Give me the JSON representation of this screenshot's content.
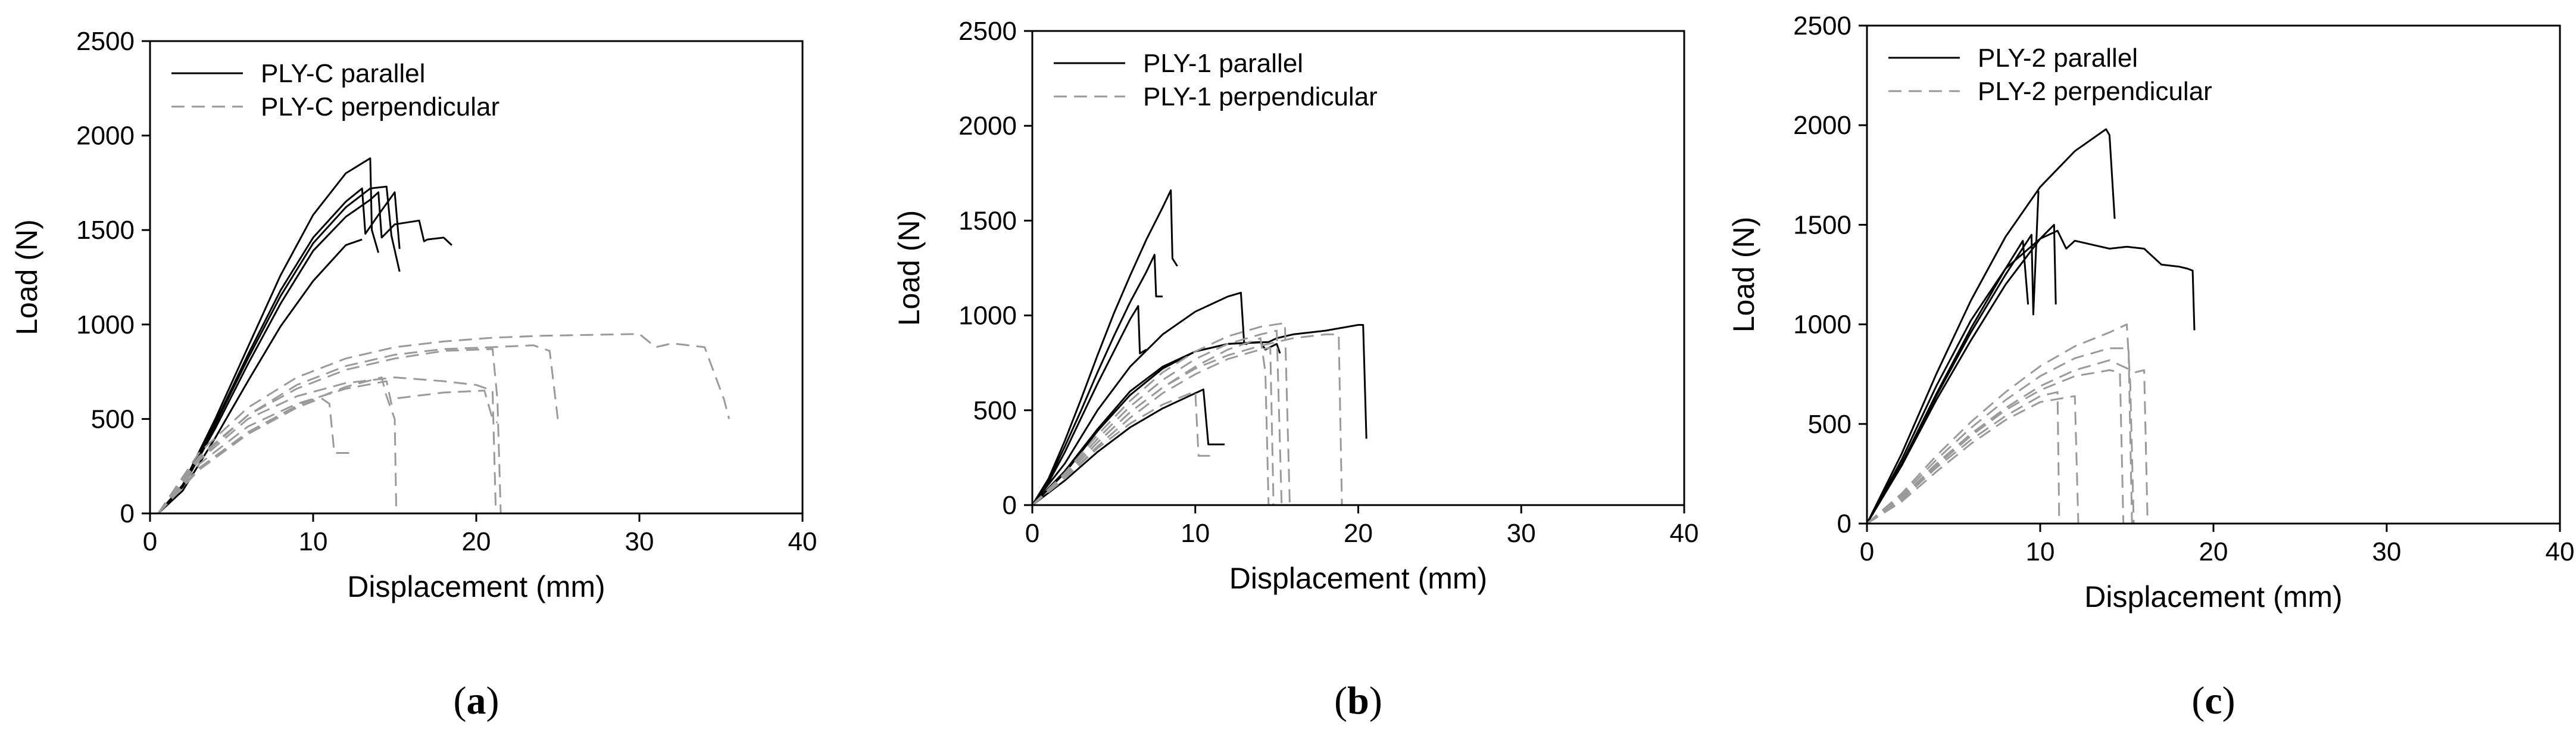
{
  "chart_data": [
    {
      "type": "line",
      "panel_label": "(a)",
      "panel_label_parts": [
        "(",
        "a",
        ")"
      ],
      "xlabel": "Displacement (mm)",
      "ylabel": "Load (N)",
      "xlim": [
        0,
        40
      ],
      "ylim": [
        0,
        2500
      ],
      "xticks": [
        0,
        10,
        20,
        30,
        40
      ],
      "yticks": [
        0,
        500,
        1000,
        1500,
        2000,
        2500
      ],
      "grid": false,
      "legend_position": "top-left",
      "legend": [
        {
          "label": "PLY-C parallel",
          "style": "solid",
          "color": "#000000"
        },
        {
          "label": "PLY-C perpendicular",
          "style": "dashed",
          "color": "#9a9a9a"
        }
      ],
      "series": [
        {
          "group": 0,
          "x": [
            0.5,
            2,
            4,
            6,
            8,
            10,
            12,
            13.5,
            13.6,
            14
          ],
          "y": [
            0,
            150,
            500,
            880,
            1260,
            1580,
            1800,
            1880,
            1500,
            1380
          ]
        },
        {
          "group": 0,
          "x": [
            0.5,
            2,
            4,
            6,
            8,
            10,
            12,
            13.5,
            14.5,
            14.8,
            15.3
          ],
          "y": [
            0,
            140,
            470,
            820,
            1150,
            1430,
            1620,
            1720,
            1730,
            1470,
            1280
          ]
        },
        {
          "group": 0,
          "x": [
            0.5,
            2,
            4,
            6,
            8,
            10,
            12,
            13.5,
            14,
            14.2,
            15,
            16.5,
            16.8,
            17,
            18,
            18.5
          ],
          "y": [
            0,
            140,
            450,
            790,
            1110,
            1390,
            1570,
            1660,
            1700,
            1460,
            1530,
            1550,
            1440,
            1450,
            1460,
            1420
          ]
        },
        {
          "group": 0,
          "x": [
            0.5,
            2,
            4,
            6,
            8,
            10,
            12,
            13,
            13.2,
            14,
            15,
            15.3
          ],
          "y": [
            0,
            150,
            480,
            840,
            1180,
            1460,
            1650,
            1720,
            1480,
            1580,
            1700,
            1400
          ]
        },
        {
          "group": 0,
          "x": [
            0.5,
            2,
            4,
            6,
            8,
            10,
            12,
            13
          ],
          "y": [
            0,
            120,
            400,
            700,
            990,
            1230,
            1420,
            1450
          ]
        },
        {
          "group": 1,
          "x": [
            0.5,
            3,
            6,
            9,
            12,
            15,
            18,
            21,
            21.3,
            21.5
          ],
          "y": [
            0,
            300,
            520,
            660,
            760,
            820,
            860,
            870,
            600,
            0
          ]
        },
        {
          "group": 1,
          "x": [
            0.5,
            3,
            6,
            9,
            12,
            15,
            18,
            20,
            21,
            21.2
          ],
          "y": [
            0,
            280,
            500,
            620,
            690,
            720,
            700,
            680,
            650,
            0
          ]
        },
        {
          "group": 1,
          "x": [
            0.5,
            3,
            6,
            9,
            12,
            14.5,
            14.8,
            15.2,
            18,
            20.5,
            21,
            21.3
          ],
          "y": [
            0,
            260,
            460,
            580,
            660,
            700,
            580,
            610,
            640,
            650,
            500,
            480
          ]
        },
        {
          "group": 1,
          "x": [
            0.5,
            3,
            6,
            9,
            12,
            15,
            18,
            21,
            24,
            27,
            30,
            31,
            32,
            34,
            35.2,
            35.5
          ],
          "y": [
            0,
            320,
            560,
            720,
            820,
            880,
            910,
            930,
            940,
            945,
            950,
            880,
            900,
            880,
            600,
            500
          ]
        },
        {
          "group": 1,
          "x": [
            0.5,
            3,
            6,
            9,
            12,
            15,
            18,
            21,
            23.5,
            24.5,
            25
          ],
          "y": [
            0,
            290,
            520,
            680,
            780,
            840,
            870,
            880,
            890,
            860,
            500
          ]
        },
        {
          "group": 1,
          "x": [
            0.5,
            3,
            6,
            9,
            10.5,
            11,
            11.3,
            12.5
          ],
          "y": [
            0,
            230,
            420,
            560,
            610,
            580,
            320,
            320
          ]
        },
        {
          "group": 1,
          "x": [
            0.5,
            3,
            6,
            9,
            12,
            14.2,
            14.5,
            15,
            15.1
          ],
          "y": [
            0,
            240,
            430,
            570,
            670,
            720,
            620,
            500,
            0
          ]
        }
      ]
    },
    {
      "type": "line",
      "panel_label": "(b)",
      "panel_label_parts": [
        "(",
        "b",
        ")"
      ],
      "xlabel": "Displacement (mm)",
      "ylabel": "Load (N)",
      "xlim": [
        0,
        40
      ],
      "ylim": [
        0,
        2500
      ],
      "xticks": [
        0,
        10,
        20,
        30,
        40
      ],
      "yticks": [
        0,
        500,
        1000,
        1500,
        2000,
        2500
      ],
      "grid": false,
      "legend_position": "top-left",
      "legend": [
        {
          "label": "PLY-1 parallel",
          "style": "solid",
          "color": "#000000"
        },
        {
          "label": "PLY-1 perpendicular",
          "style": "dashed",
          "color": "#9a9a9a"
        }
      ],
      "series": [
        {
          "group": 0,
          "x": [
            0,
            1,
            2,
            3,
            4,
            5,
            6,
            7,
            8,
            8.5,
            8.6,
            8.9
          ],
          "y": [
            0,
            140,
            340,
            560,
            790,
            1010,
            1210,
            1400,
            1570,
            1660,
            1300,
            1260
          ]
        },
        {
          "group": 0,
          "x": [
            0,
            1,
            2,
            3,
            4,
            5,
            6,
            7,
            7.5,
            7.6,
            8
          ],
          "y": [
            0,
            130,
            310,
            500,
            700,
            890,
            1070,
            1230,
            1320,
            1100,
            1100
          ]
        },
        {
          "group": 0,
          "x": [
            0,
            1,
            2,
            3,
            4,
            5,
            6,
            6.5,
            6.6,
            7
          ],
          "y": [
            0,
            120,
            280,
            460,
            640,
            810,
            980,
            1050,
            800,
            820
          ]
        },
        {
          "group": 0,
          "x": [
            0,
            2,
            4,
            6,
            8,
            10,
            12,
            12.8,
            13,
            13.2
          ],
          "y": [
            0,
            220,
            500,
            730,
            900,
            1020,
            1100,
            1120,
            850,
            850
          ]
        },
        {
          "group": 0,
          "x": [
            0,
            2,
            4,
            6,
            8,
            10,
            12,
            14,
            14.3,
            15,
            15.2
          ],
          "y": [
            0,
            170,
            390,
            580,
            720,
            810,
            850,
            860,
            820,
            850,
            800
          ]
        },
        {
          "group": 0,
          "x": [
            0,
            2,
            4,
            6,
            8,
            10,
            12,
            14.5,
            15,
            16,
            18,
            20,
            20.3,
            20.5
          ],
          "y": [
            0,
            180,
            400,
            600,
            730,
            810,
            850,
            860,
            880,
            900,
            920,
            950,
            950,
            350
          ]
        },
        {
          "group": 0,
          "x": [
            0,
            2,
            4,
            6,
            8,
            10,
            10.5,
            10.8,
            11.8
          ],
          "y": [
            0,
            130,
            280,
            410,
            510,
            590,
            610,
            320,
            320
          ]
        },
        {
          "group": 1,
          "x": [
            0,
            2,
            4,
            6,
            8,
            10,
            12,
            14,
            14.3,
            14.5
          ],
          "y": [
            0,
            150,
            330,
            490,
            620,
            730,
            820,
            880,
            700,
            0
          ]
        },
        {
          "group": 1,
          "x": [
            0,
            2,
            4,
            6,
            8,
            10,
            12,
            14,
            15,
            15.3
          ],
          "y": [
            0,
            160,
            350,
            520,
            660,
            770,
            850,
            900,
            920,
            0
          ]
        },
        {
          "group": 1,
          "x": [
            0,
            2,
            4,
            6,
            8,
            10,
            12,
            14,
            15.5,
            15.8
          ],
          "y": [
            0,
            170,
            370,
            550,
            700,
            810,
            890,
            940,
            960,
            0
          ]
        },
        {
          "group": 1,
          "x": [
            0,
            2,
            4,
            6,
            8,
            10,
            10.2,
            11
          ],
          "y": [
            0,
            140,
            300,
            430,
            530,
            600,
            260,
            260
          ]
        },
        {
          "group": 1,
          "x": [
            0,
            2,
            4,
            6,
            8,
            10,
            12,
            14,
            16,
            18,
            18.8,
            19
          ],
          "y": [
            0,
            150,
            330,
            490,
            620,
            720,
            790,
            840,
            880,
            900,
            900,
            0
          ]
        },
        {
          "group": 1,
          "x": [
            0,
            2,
            4,
            6,
            8,
            10,
            12,
            14,
            14.6,
            14.8
          ],
          "y": [
            0,
            140,
            310,
            460,
            590,
            690,
            770,
            820,
            830,
            0
          ]
        }
      ]
    },
    {
      "type": "line",
      "panel_label": "(c)",
      "panel_label_parts": [
        "(",
        "c",
        ")"
      ],
      "xlabel": "Displacement (mm)",
      "ylabel": "Load (N)",
      "xlim": [
        0,
        40
      ],
      "ylim": [
        0,
        2500
      ],
      "xticks": [
        0,
        10,
        20,
        30,
        40
      ],
      "yticks": [
        0,
        500,
        1000,
        1500,
        2000,
        2500
      ],
      "grid": false,
      "legend_position": "top-left",
      "legend": [
        {
          "label": "PLY-2 parallel",
          "style": "solid",
          "color": "#000000"
        },
        {
          "label": "PLY-2 perpendicular",
          "style": "dashed",
          "color": "#9a9a9a"
        }
      ],
      "series": [
        {
          "group": 0,
          "x": [
            0,
            2,
            4,
            6,
            8,
            10,
            12,
            13.8,
            14,
            14.3
          ],
          "y": [
            0,
            350,
            750,
            1120,
            1440,
            1690,
            1870,
            1980,
            1950,
            1530
          ]
        },
        {
          "group": 0,
          "x": [
            0,
            2,
            4,
            6,
            8,
            10,
            11,
            11.5,
            12,
            13,
            14,
            15,
            16,
            17,
            18,
            18.5,
            18.8,
            18.9
          ],
          "y": [
            0,
            320,
            690,
            1020,
            1280,
            1430,
            1470,
            1380,
            1420,
            1400,
            1380,
            1390,
            1380,
            1300,
            1290,
            1280,
            1270,
            970
          ]
        },
        {
          "group": 0,
          "x": [
            0,
            2,
            4,
            6,
            8,
            9.5,
            9.6,
            9.9
          ],
          "y": [
            0,
            300,
            640,
            960,
            1250,
            1450,
            1050,
            1670
          ]
        },
        {
          "group": 0,
          "x": [
            0,
            2,
            4,
            6,
            8,
            10,
            10.8,
            10.9
          ],
          "y": [
            0,
            290,
            620,
            920,
            1200,
            1430,
            1500,
            1100
          ]
        },
        {
          "group": 0,
          "x": [
            0,
            2,
            4,
            6,
            8,
            9,
            9.3
          ],
          "y": [
            0,
            300,
            650,
            980,
            1280,
            1420,
            1100
          ]
        },
        {
          "group": 1,
          "x": [
            0,
            2,
            4,
            6,
            8,
            10,
            12,
            14,
            15,
            15.2,
            15.4
          ],
          "y": [
            0,
            150,
            340,
            510,
            660,
            790,
            890,
            960,
            1000,
            700,
            0
          ]
        },
        {
          "group": 1,
          "x": [
            0,
            2,
            4,
            6,
            8,
            10,
            12,
            14,
            15.1,
            15.3
          ],
          "y": [
            0,
            140,
            320,
            480,
            620,
            740,
            830,
            880,
            880,
            0
          ]
        },
        {
          "group": 1,
          "x": [
            0,
            2,
            4,
            6,
            8,
            10,
            12,
            14,
            15.5,
            16,
            16.2
          ],
          "y": [
            0,
            130,
            300,
            450,
            580,
            690,
            770,
            820,
            760,
            770,
            0
          ]
        },
        {
          "group": 1,
          "x": [
            0,
            2,
            4,
            6,
            8,
            10,
            11,
            11.1
          ],
          "y": [
            0,
            120,
            280,
            420,
            540,
            640,
            660,
            0
          ]
        },
        {
          "group": 1,
          "x": [
            0,
            2,
            4,
            6,
            8,
            10,
            12,
            12.2
          ],
          "y": [
            0,
            110,
            260,
            400,
            520,
            610,
            640,
            0
          ]
        },
        {
          "group": 1,
          "x": [
            0,
            2,
            4,
            6,
            8,
            10,
            12,
            14,
            14.6,
            14.8
          ],
          "y": [
            0,
            130,
            290,
            440,
            570,
            670,
            740,
            770,
            760,
            0
          ]
        }
      ]
    }
  ]
}
